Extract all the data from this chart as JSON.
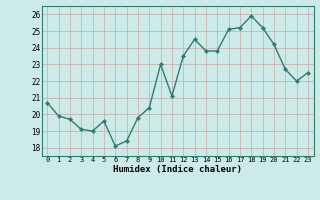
{
  "x": [
    0,
    1,
    2,
    3,
    4,
    5,
    6,
    7,
    8,
    9,
    10,
    11,
    12,
    13,
    14,
    15,
    16,
    17,
    18,
    19,
    20,
    21,
    22,
    23
  ],
  "y": [
    20.7,
    19.9,
    19.7,
    19.1,
    19.0,
    19.6,
    18.1,
    18.4,
    19.8,
    20.4,
    23.0,
    21.1,
    23.5,
    24.5,
    23.8,
    23.8,
    25.1,
    25.2,
    25.9,
    25.2,
    24.2,
    22.7,
    22.0,
    22.5
  ],
  "xlabel": "Humidex (Indice chaleur)",
  "ylim": [
    17.5,
    26.5
  ],
  "xlim": [
    -0.5,
    23.5
  ],
  "yticks": [
    18,
    19,
    20,
    21,
    22,
    23,
    24,
    25,
    26
  ],
  "xticks": [
    0,
    1,
    2,
    3,
    4,
    5,
    6,
    7,
    8,
    9,
    10,
    11,
    12,
    13,
    14,
    15,
    16,
    17,
    18,
    19,
    20,
    21,
    22,
    23
  ],
  "xtick_labels": [
    "0",
    "1",
    "2",
    "3",
    "4",
    "5",
    "6",
    "7",
    "8",
    "9",
    "10",
    "11",
    "12",
    "13",
    "14",
    "15",
    "16",
    "17",
    "18",
    "19",
    "20",
    "21",
    "22",
    "23"
  ],
  "line_color": "#2e7d6e",
  "marker_color": "#2e7d6e",
  "grid_color_h": "#c8a8a8",
  "grid_color_v": "#c8a8a8",
  "axis_bg": "#cceae8",
  "fig_bg": "#cceae8"
}
